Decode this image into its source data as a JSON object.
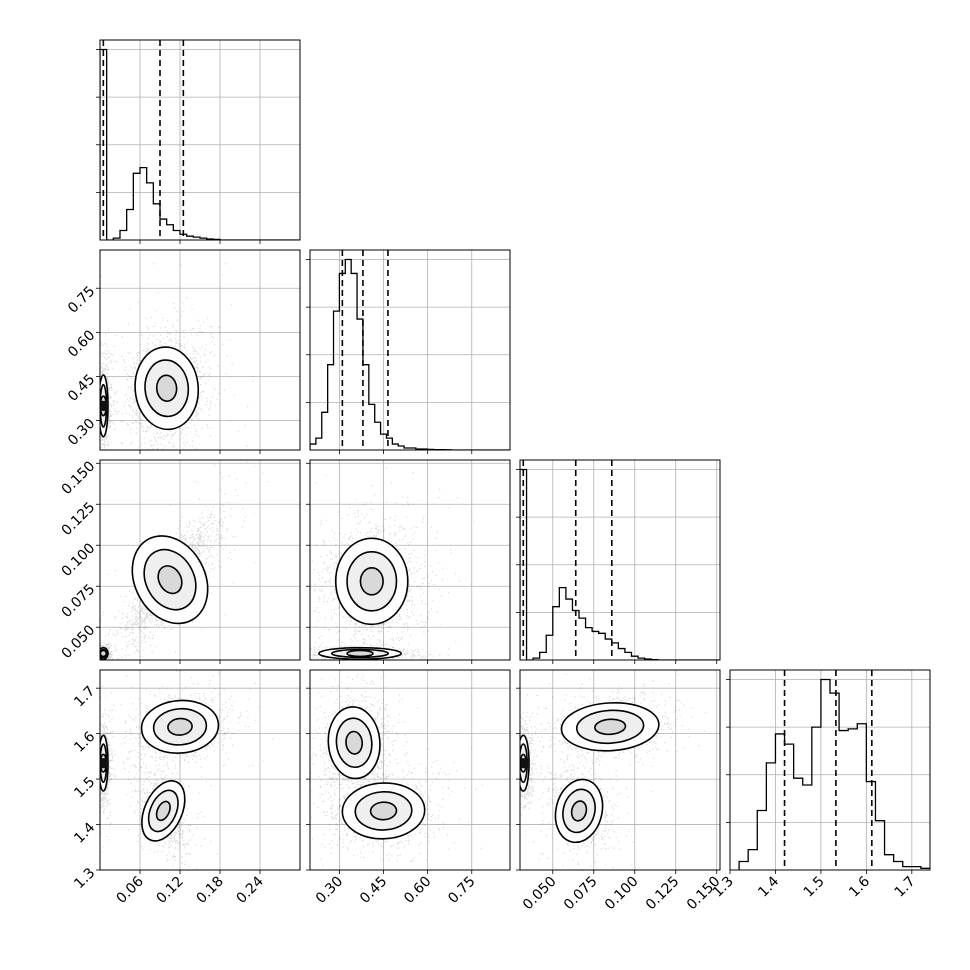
{
  "chart_data": {
    "type": "corner",
    "parameters": [
      {
        "name": "",
        "range": [
          0,
          0.3
        ],
        "ticks": [
          0.06,
          0.12,
          0.18,
          0.24
        ],
        "tick_labels": [
          "0.06",
          "0.12",
          "0.18",
          "0.24"
        ],
        "quantile_lines": [
          0.005,
          0.09,
          0.125
        ],
        "hist": {
          "x0": 0.0,
          "dx": 0.01,
          "n": [
            1.0,
            0,
            0.01,
            0.05,
            0.16,
            0.35,
            0.38,
            0.3,
            0.19,
            0.11,
            0.08,
            0.05,
            0.03,
            0.02,
            0.015,
            0.01,
            0.005,
            0.003,
            0,
            0,
            0,
            0,
            0,
            0,
            0,
            0,
            0,
            0,
            0,
            0
          ]
        }
      },
      {
        "name": "",
        "range": [
          0.2,
          0.88
        ],
        "ticks": [
          0.3,
          0.45,
          0.6,
          0.75
        ],
        "tick_labels": [
          "0.30",
          "0.45",
          "0.60",
          "0.75"
        ],
        "quantile_lines": [
          0.31,
          0.38,
          0.465
        ],
        "hist": {
          "x0": 0.2,
          "dx": 0.02,
          "n": [
            0.03,
            0.06,
            0.19,
            0.43,
            0.7,
            0.89,
            0.96,
            0.89,
            0.66,
            0.43,
            0.23,
            0.14,
            0.08,
            0.06,
            0.03,
            0.02,
            0.01,
            0.01,
            0.005,
            0.005,
            0.003,
            0.002,
            0.002,
            0.001,
            0,
            0,
            0,
            0,
            0,
            0,
            0,
            0,
            0,
            0
          ]
        }
      },
      {
        "name": "",
        "range": [
          0.03,
          0.152
        ],
        "ticks": [
          0.05,
          0.075,
          0.1,
          0.125,
          0.15
        ],
        "tick_labels": [
          "0.050",
          "0.075",
          "0.100",
          "0.125",
          "0.150"
        ],
        "quantile_lines": [
          0.032,
          0.064,
          0.086
        ],
        "hist": {
          "x0": 0.03,
          "dx": 0.004,
          "n": [
            1.0,
            0,
            0.01,
            0.04,
            0.13,
            0.28,
            0.38,
            0.32,
            0.26,
            0.22,
            0.17,
            0.15,
            0.14,
            0.11,
            0.09,
            0.06,
            0.04,
            0.02,
            0.01,
            0.005,
            0.002,
            0,
            0,
            0,
            0,
            0,
            0,
            0,
            0,
            0,
            0
          ]
        }
      },
      {
        "name": "",
        "range": [
          1.3,
          1.74
        ],
        "ticks": [
          1.3,
          1.4,
          1.5,
          1.6,
          1.7
        ],
        "tick_labels": [
          "1.3",
          "1.4",
          "1.5",
          "1.6",
          "1.7"
        ],
        "quantile_lines": [
          1.42,
          1.533,
          1.612
        ],
        "hist": {
          "x0": 1.32,
          "dx": 0.02,
          "n": [
            0.05,
            0.12,
            0.35,
            0.63,
            0.8,
            0.74,
            0.54,
            0.5,
            0.84,
            1.12,
            1.04,
            0.82,
            0.83,
            0.86,
            0.52,
            0.29,
            0.09,
            0.05,
            0.02,
            0.02,
            0.01,
            0.01
          ]
        }
      }
    ],
    "pair_panels": [
      {
        "x": 0,
        "y": 1,
        "clusters": [
          {
            "center": [
              0.1,
              0.41
            ],
            "sx": 0.027,
            "sy": 0.08,
            "rho": 0.1,
            "frac": 0.65
          },
          {
            "center": [
              0.005,
              0.35
            ],
            "sx": 0.004,
            "sy": 0.06,
            "rho": 0.0,
            "frac": 0.35
          }
        ]
      },
      {
        "x": 0,
        "y": 2,
        "clusters": [
          {
            "center": [
              0.105,
              0.079
            ],
            "sx": 0.03,
            "sy": 0.016,
            "rho": 0.8,
            "frac": 0.7
          },
          {
            "center": [
              0.005,
              0.034
            ],
            "sx": 0.004,
            "sy": 0.002,
            "rho": 0.0,
            "frac": 0.3
          }
        ]
      },
      {
        "x": 0,
        "y": 3,
        "clusters": [
          {
            "center": [
              0.12,
              1.615
            ],
            "sx": 0.033,
            "sy": 0.033,
            "rho": 0.2,
            "frac": 0.38
          },
          {
            "center": [
              0.095,
              1.43
            ],
            "sx": 0.016,
            "sy": 0.04,
            "rho": -0.5,
            "frac": 0.3
          },
          {
            "center": [
              0.005,
              1.535
            ],
            "sx": 0.004,
            "sy": 0.035,
            "rho": 0.0,
            "frac": 0.32
          }
        ]
      },
      {
        "x": 1,
        "y": 2,
        "clusters": [
          {
            "center": [
              0.41,
              0.078
            ],
            "sx": 0.07,
            "sy": 0.015,
            "rho": 0.0,
            "frac": 0.7
          },
          {
            "center": [
              0.37,
              0.034
            ],
            "sx": 0.08,
            "sy": 0.002,
            "rho": 0.0,
            "frac": 0.3
          }
        ]
      },
      {
        "x": 1,
        "y": 3,
        "clusters": [
          {
            "center": [
              0.35,
              1.58
            ],
            "sx": 0.05,
            "sy": 0.045,
            "rho": 0.1,
            "frac": 0.55
          },
          {
            "center": [
              0.45,
              1.43
            ],
            "sx": 0.08,
            "sy": 0.035,
            "rho": 0.1,
            "frac": 0.45
          }
        ]
      },
      {
        "x": 2,
        "y": 3,
        "clusters": [
          {
            "center": [
              0.085,
              1.615
            ],
            "sx": 0.017,
            "sy": 0.03,
            "rho": 0.2,
            "frac": 0.38
          },
          {
            "center": [
              0.066,
              1.43
            ],
            "sx": 0.008,
            "sy": 0.04,
            "rho": -0.3,
            "frac": 0.3
          },
          {
            "center": [
              0.032,
              1.535
            ],
            "sx": 0.002,
            "sy": 0.035,
            "rho": 0.0,
            "frac": 0.32
          }
        ]
      }
    ],
    "grid": true,
    "quantile_line_style": "dashed",
    "colors": {
      "points": "#000000",
      "contours": "#000000",
      "grid": "#b0b0b0",
      "hist": "#000000"
    }
  }
}
